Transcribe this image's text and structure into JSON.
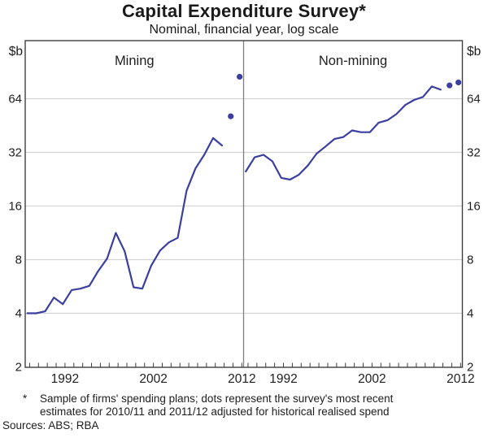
{
  "chart_data": {
    "type": "line",
    "title": "Capital Expenditure Survey*",
    "subtitle": "Nominal, financial year, log scale",
    "unit": "$b",
    "yscale": "log2",
    "ylim": [
      2,
      135
    ],
    "yticks": [
      2,
      4,
      8,
      16,
      32,
      64
    ],
    "xtick_years": {
      "start": 1988,
      "end": 2012,
      "step": 1
    },
    "xtick_labels": [
      1992,
      2002,
      2012
    ],
    "grid": true,
    "legend": "none",
    "panels": [
      {
        "label": "Mining",
        "years": [
          1988,
          1989,
          1990,
          1991,
          1992,
          1993,
          1994,
          1995,
          1996,
          1997,
          1998,
          1999,
          2000,
          2001,
          2002,
          2003,
          2004,
          2005,
          2006,
          2007,
          2008,
          2009,
          2010
        ],
        "values": [
          4.0,
          4.0,
          4.1,
          4.9,
          4.5,
          5.4,
          5.5,
          5.7,
          6.9,
          8.1,
          11.3,
          8.9,
          5.6,
          5.5,
          7.4,
          9.0,
          10.0,
          10.6,
          19.5,
          26.0,
          31.0,
          38.5,
          35.0
        ],
        "dots": [
          {
            "year": 2011,
            "value": 51,
            "estimate_for": "2010/11"
          },
          {
            "year": 2012,
            "value": 85,
            "estimate_for": "2011/12"
          }
        ]
      },
      {
        "label": "Non-mining",
        "years": [
          1988,
          1989,
          1990,
          1991,
          1992,
          1993,
          1994,
          1995,
          1996,
          1997,
          1998,
          1999,
          2000,
          2001,
          2002,
          2003,
          2004,
          2005,
          2006,
          2007,
          2008,
          2009,
          2010
        ],
        "values": [
          25,
          30,
          31,
          28.5,
          23,
          22.5,
          24,
          27,
          31.5,
          34.5,
          38,
          39,
          42.5,
          41.5,
          41.5,
          47,
          48.5,
          52.5,
          59,
          63,
          65.5,
          75,
          72
        ],
        "dots": [
          {
            "year": 2011,
            "value": 76,
            "estimate_for": "2010/11"
          },
          {
            "year": 2012,
            "value": 79,
            "estimate_for": "2011/12"
          }
        ]
      }
    ],
    "colors": {
      "line": "#3A3FA0",
      "dot": "#3A3FA0",
      "grid": "#d4d4d4",
      "frame": "#3f3f3f",
      "divider": "#7e7e7e",
      "text": "#1f1f1f"
    }
  },
  "footnote": {
    "marker": "*",
    "lines": [
      "Sample of firms' spending plans; dots represent the survey's most recent",
      "estimates for 2010/11 and 2011/12 adjusted for historical realised spend"
    ]
  },
  "sources": "Sources: ABS; RBA"
}
